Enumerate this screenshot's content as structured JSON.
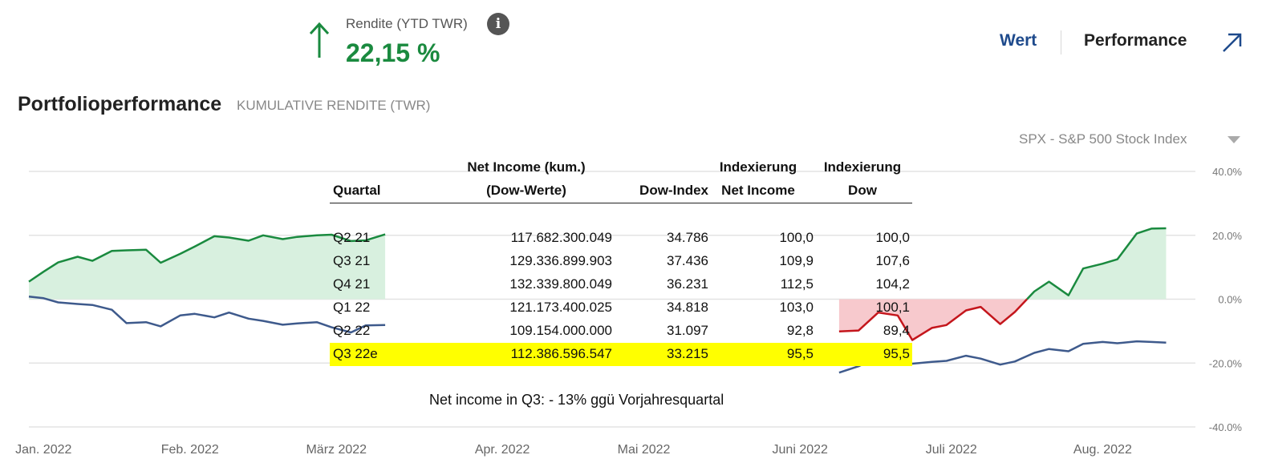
{
  "header": {
    "rendite_label": "Rendite (YTD TWR)",
    "rendite_value": "22,15 %",
    "info_glyph": "i",
    "tabs": {
      "wert": "Wert",
      "performance": "Performance"
    }
  },
  "colors": {
    "portfolio": "#1a8a3f",
    "portfolio_fill_pos": "#d8f0df",
    "portfolio_neg": "#c4161c",
    "portfolio_fill_neg": "#f7c9cd",
    "index": "#3e5a8c",
    "grid": "#e3e3e3",
    "highlight": "#ffff00",
    "tab_active": "#1e4a8c"
  },
  "icons": {
    "up_arrow": "arrow-up-icon",
    "info": "info-icon",
    "expand": "expand-arrow-icon",
    "dropdown": "caret-down-icon"
  },
  "chart_data": {
    "type": "line",
    "title": "Portfolioperformance",
    "subtitle": "KUMULATIVE RENDITE (TWR)",
    "index_selector": "SPX - S&P 500 Stock Index",
    "ylim": [
      -40,
      40
    ],
    "y_ticks": [
      40,
      20,
      0,
      -20,
      -40
    ],
    "y_tick_labels": [
      "40.0%",
      "20.0%",
      "0.0%",
      "-20.0%",
      "-40.0%"
    ],
    "x_ticks": [
      "Jan. 2022",
      "Feb. 2022",
      "März 2022",
      "Apr. 2022",
      "Mai 2022",
      "Juni 2022",
      "Juli 2022",
      "Aug. 2022"
    ],
    "grid": true,
    "series": [
      {
        "name": "Portfolio",
        "segments": [
          {
            "x": [
              "2022-01-01",
              "2022-01-04",
              "2022-01-07",
              "2022-01-11",
              "2022-01-14",
              "2022-01-18",
              "2022-01-21",
              "2022-01-25",
              "2022-01-28",
              "2022-02-01",
              "2022-02-04",
              "2022-02-08",
              "2022-02-11",
              "2022-02-15",
              "2022-02-18",
              "2022-02-22",
              "2022-02-25",
              "2022-03-01",
              "2022-03-04",
              "2022-03-08",
              "2022-03-11",
              "2022-03-15"
            ],
            "y": [
              5.5,
              8.6,
              11.5,
              13.3,
              12.0,
              15.1,
              15.3,
              15.5,
              11.4,
              14.2,
              16.5,
              19.7,
              19.3,
              18.3,
              20.0,
              18.8,
              19.5,
              20.0,
              20.2,
              18.2,
              18.4,
              20.3
            ]
          },
          {
            "x": [
              "2022-06-16",
              "2022-06-20",
              "2022-06-24",
              "2022-06-28",
              "2022-07-01",
              "2022-07-05",
              "2022-07-08",
              "2022-07-12",
              "2022-07-15",
              "2022-07-19",
              "2022-07-22",
              "2022-07-26",
              "2022-07-29",
              "2022-08-02",
              "2022-08-05",
              "2022-08-09",
              "2022-08-12",
              "2022-08-16",
              "2022-08-19",
              "2022-08-22"
            ],
            "y": [
              -10.1,
              -9.8,
              -4.2,
              -5.1,
              -12.8,
              -9.0,
              -8.1,
              -3.5,
              -2.4,
              -7.8,
              -4.0,
              2.4,
              5.5,
              1.2,
              9.6,
              11.1,
              12.5,
              20.6,
              22.1,
              22.2
            ]
          }
        ]
      },
      {
        "name": "SPX - S&P 500 Stock Index",
        "segments": [
          {
            "x": [
              "2022-01-01",
              "2022-01-04",
              "2022-01-07",
              "2022-01-11",
              "2022-01-14",
              "2022-01-18",
              "2022-01-21",
              "2022-01-25",
              "2022-01-28",
              "2022-02-01",
              "2022-02-04",
              "2022-02-08",
              "2022-02-11",
              "2022-02-15",
              "2022-02-18",
              "2022-02-22",
              "2022-02-25",
              "2022-03-01",
              "2022-03-04",
              "2022-03-08",
              "2022-03-11",
              "2022-03-15"
            ],
            "y": [
              0.8,
              0.3,
              -1.0,
              -1.5,
              -1.8,
              -3.3,
              -7.5,
              -7.2,
              -8.5,
              -5.1,
              -4.6,
              -5.7,
              -4.2,
              -6.1,
              -6.8,
              -8.0,
              -7.6,
              -7.2,
              -8.8,
              -10.4,
              -8.2,
              -8.1
            ]
          },
          {
            "x": [
              "2022-06-16",
              "2022-06-20",
              "2022-06-24",
              "2022-06-28",
              "2022-07-01",
              "2022-07-05",
              "2022-07-08",
              "2022-07-12",
              "2022-07-15",
              "2022-07-19",
              "2022-07-22",
              "2022-07-26",
              "2022-07-29",
              "2022-08-02",
              "2022-08-05",
              "2022-08-09",
              "2022-08-12",
              "2022-08-16",
              "2022-08-19",
              "2022-08-22"
            ],
            "y": [
              -23.0,
              -21.0,
              -18.1,
              -19.7,
              -20.2,
              -19.6,
              -19.3,
              -17.7,
              -18.6,
              -20.5,
              -19.5,
              -16.8,
              -15.6,
              -16.3,
              -14.0,
              -13.4,
              -13.8,
              -13.2,
              -13.4,
              -13.6
            ]
          }
        ]
      }
    ]
  },
  "overlay_table": {
    "headers": {
      "quartal": "Quartal",
      "net_income_l1": "Net Income (kum.)",
      "net_income_l2": "(Dow-Werte)",
      "dow_index": "Dow-Index",
      "idx_ni_l1": "Indexierung",
      "idx_ni_l2": "Net Income",
      "idx_dow_l1": "Indexierung",
      "idx_dow_l2": "Dow"
    },
    "rows": [
      {
        "quartal": "Q2 21",
        "net_income": "117.682.300.049",
        "dow_index": "34.786",
        "idx_ni": "100,0",
        "idx_dow": "100,0"
      },
      {
        "quartal": "Q3 21",
        "net_income": "129.336.899.903",
        "dow_index": "37.436",
        "idx_ni": "109,9",
        "idx_dow": "107,6"
      },
      {
        "quartal": "Q4 21",
        "net_income": "132.339.800.049",
        "dow_index": "36.231",
        "idx_ni": "112,5",
        "idx_dow": "104,2"
      },
      {
        "quartal": "Q1 22",
        "net_income": "121.173.400.025",
        "dow_index": "34.818",
        "idx_ni": "103,0",
        "idx_dow": "100,1"
      },
      {
        "quartal": "Q2 22",
        "net_income": "109.154.000.000",
        "dow_index": "31.097",
        "idx_ni": "92,8",
        "idx_dow": "89,4"
      },
      {
        "quartal": "Q3 22e",
        "net_income": "112.386.596.547",
        "dow_index": "33.215",
        "idx_ni": "95,5",
        "idx_dow": "95,5"
      }
    ],
    "highlight_row": "Q3 22e",
    "note": "Net income in Q3: - 13% ggü Vorjahresquartal"
  }
}
